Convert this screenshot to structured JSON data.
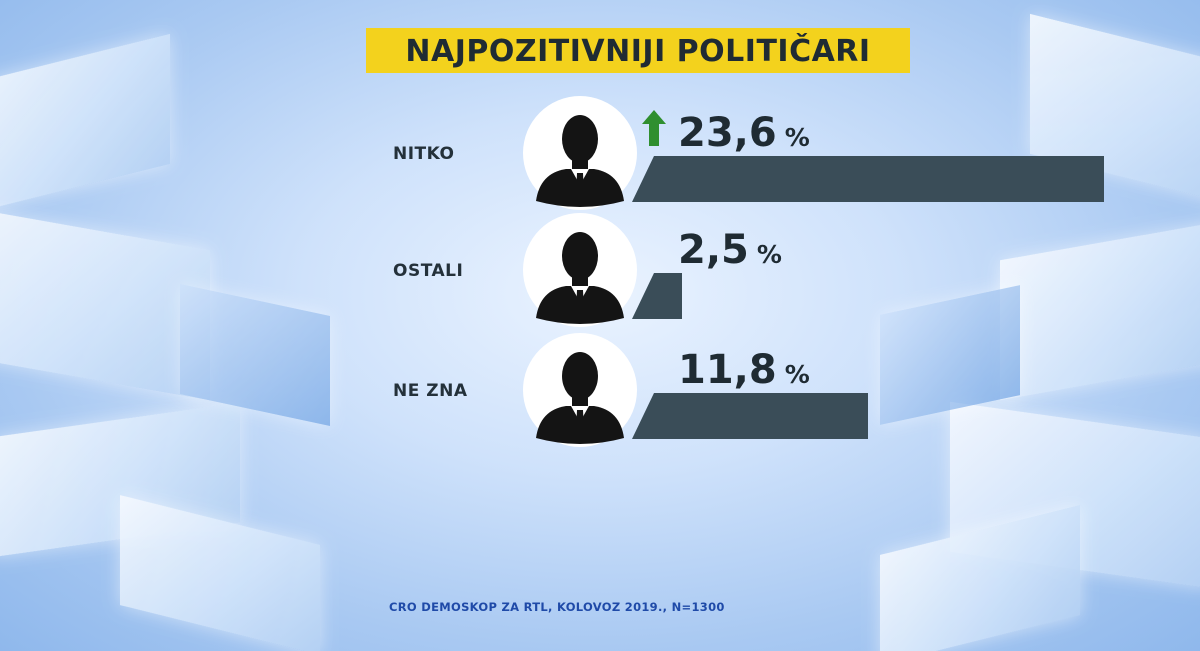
{
  "chart_data": {
    "type": "bar",
    "title": "NAJPOZITIVNIJI POLITIČARI",
    "categories": [
      "NITKO",
      "OSTALI",
      "NE ZNA"
    ],
    "values": [
      23.6,
      2.5,
      11.8
    ],
    "value_labels": [
      "23,6",
      "2,5",
      "11,8"
    ],
    "unit": "%",
    "trend": [
      "up",
      null,
      null
    ],
    "orientation": "horizontal",
    "grid": false,
    "source": "CRO DEMOSKOP ZA RTL, KOLOVOZ 2019., N=1300"
  },
  "colors": {
    "title_background": "#f3d21d",
    "bar": "#3a4d58",
    "trend_up": "#2f8f2f",
    "text": "#1f2b33",
    "source_text": "#1f4aa8"
  },
  "icons": [
    "person-silhouette-icon",
    "arrow-up-icon"
  ]
}
